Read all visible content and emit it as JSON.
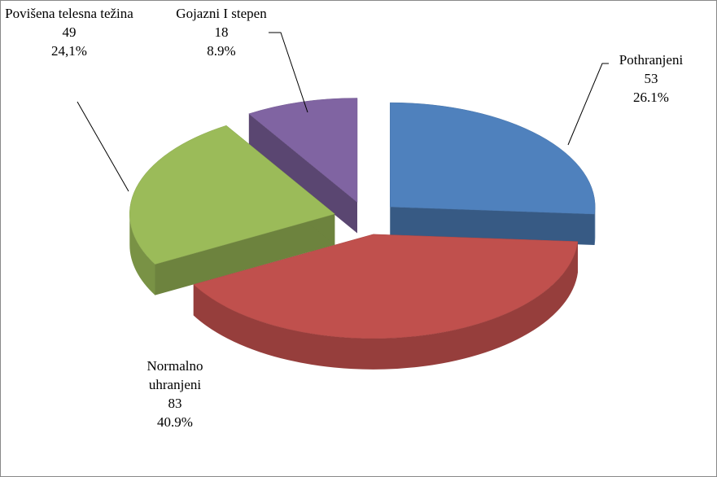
{
  "chart_data": {
    "type": "pie",
    "categories": [
      "Pothranjeni",
      "Normalno uhranjeni",
      "Povišena telesna težina",
      "Gojazni I stepen"
    ],
    "values": [
      53,
      83,
      49,
      18
    ],
    "percent_labels": [
      "26.1%",
      "40.9%",
      "24,1%",
      "8.9%"
    ],
    "colors": [
      "#4f81bd",
      "#c0504d",
      "#9bbb59",
      "#8064a2"
    ]
  }
}
